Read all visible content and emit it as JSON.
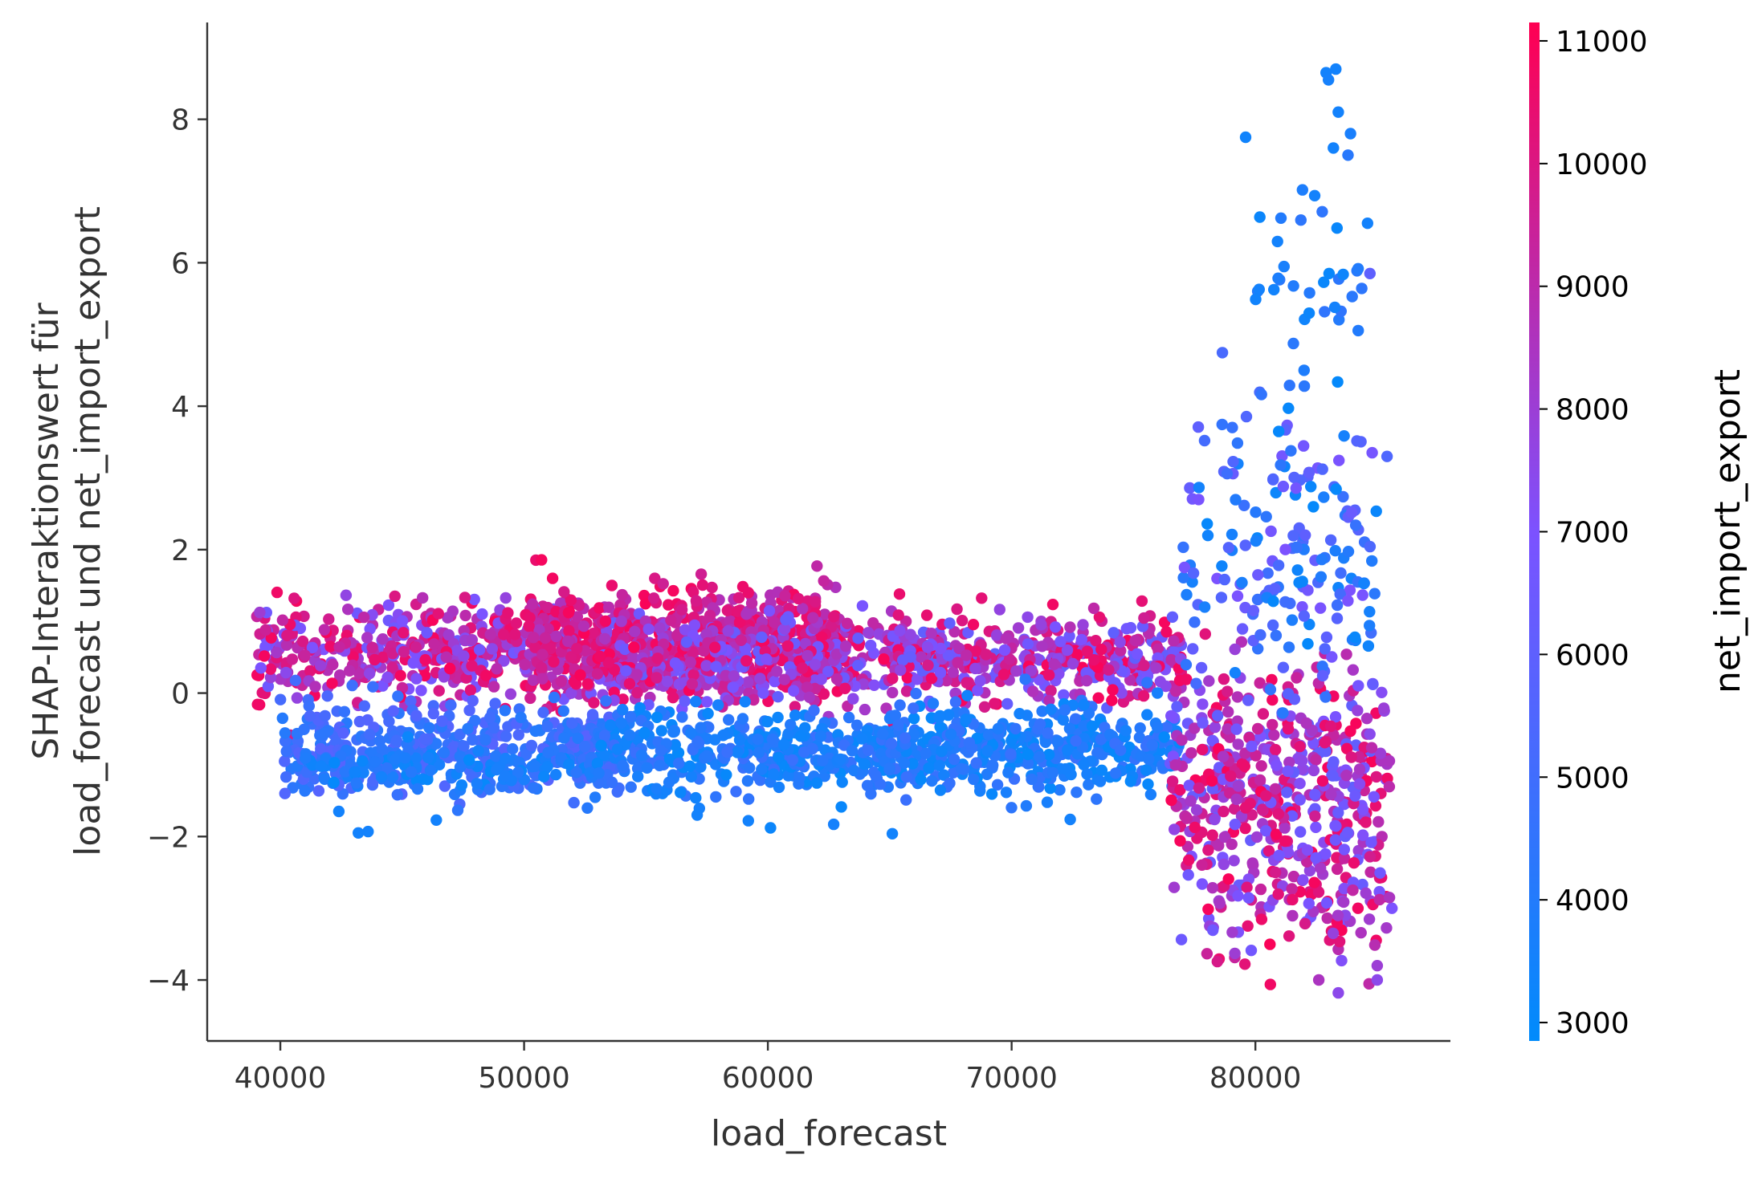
{
  "chart_data": {
    "type": "scatter",
    "xlabel": "load_forecast",
    "ylabel_lines": [
      "SHAP-Interaktionswert für",
      "load_forecast und net_import_export"
    ],
    "xlim": [
      37000,
      88000
    ],
    "ylim": [
      -4.85,
      9.35
    ],
    "x_ticks": [
      40000,
      50000,
      60000,
      70000,
      80000
    ],
    "x_tick_labels": [
      "40000",
      "50000",
      "60000",
      "70000",
      "80000"
    ],
    "y_ticks": [
      -4,
      -2,
      0,
      2,
      4,
      6,
      8
    ],
    "y_tick_labels": [
      "−4",
      "−2",
      "0",
      "2",
      "4",
      "6",
      "8"
    ],
    "grid": false,
    "colorbar": {
      "label": "net_import_export",
      "range": [
        2850,
        11150
      ],
      "ticks": [
        3000,
        4000,
        5000,
        6000,
        7000,
        8000,
        9000,
        10000,
        11000
      ],
      "tick_labels": [
        "3000",
        "4000",
        "5000",
        "6000",
        "7000",
        "8000",
        "9000",
        "10000",
        "11000"
      ],
      "colors": [
        "#008bfb",
        "#7c52ff",
        "#ff0052"
      ]
    },
    "clusters": [
      {
        "x_range": [
          39000,
          54000
        ],
        "y_center": 0.6,
        "y_spread": 0.35,
        "color_range": [
          6500,
          11000
        ],
        "count": 500
      },
      {
        "x_range": [
          50000,
          63000
        ],
        "y_center": 0.75,
        "y_spread": 0.35,
        "color_range": [
          8500,
          11000
        ],
        "count": 550
      },
      {
        "x_range": [
          53000,
          77000
        ],
        "y_center": 0.45,
        "y_spread": 0.3,
        "color_range": [
          6000,
          11000
        ],
        "count": 900
      },
      {
        "x_range": [
          40000,
          54000
        ],
        "y_center": -0.75,
        "y_spread": 0.3,
        "color_range": [
          4000,
          5800
        ],
        "count": 450
      },
      {
        "x_range": [
          41000,
          53000
        ],
        "y_center": -1.05,
        "y_spread": 0.15,
        "color_range": [
          3000,
          4500
        ],
        "count": 120
      },
      {
        "x_range": [
          53000,
          77000
        ],
        "y_center": -0.8,
        "y_spread": 0.3,
        "color_range": [
          3000,
          4800
        ],
        "count": 800
      },
      {
        "x_range": [
          76500,
          85500
        ],
        "y_center": -1.2,
        "y_spread": 0.8,
        "color_range": [
          6000,
          11000
        ],
        "count": 450
      },
      {
        "x_range": [
          78000,
          85500
        ],
        "y_center": -2.9,
        "y_spread": 0.5,
        "color_range": [
          6500,
          11000
        ],
        "count": 120
      },
      {
        "x_range": [
          77000,
          85000
        ],
        "y_center": 2.0,
        "y_spread": 1.1,
        "color_range": [
          3000,
          7000
        ],
        "count": 180
      },
      {
        "x_range": [
          80000,
          84500
        ],
        "y_center": 5.5,
        "y_spread": 0.9,
        "color_range": [
          3000,
          4500
        ],
        "count": 40
      }
    ],
    "outliers": [
      {
        "x": 82900,
        "y": 8.65,
        "c": 3500
      },
      {
        "x": 83300,
        "y": 8.7,
        "c": 3500
      },
      {
        "x": 83000,
        "y": 8.55,
        "c": 3600
      },
      {
        "x": 83400,
        "y": 8.1,
        "c": 3500
      },
      {
        "x": 79600,
        "y": 7.75,
        "c": 3400
      },
      {
        "x": 83900,
        "y": 7.8,
        "c": 3700
      },
      {
        "x": 83200,
        "y": 7.6,
        "c": 3500
      },
      {
        "x": 83800,
        "y": 7.5,
        "c": 4200
      },
      {
        "x": 84600,
        "y": 6.55,
        "c": 3500
      },
      {
        "x": 84700,
        "y": 5.85,
        "c": 6000
      },
      {
        "x": 85400,
        "y": 3.3,
        "c": 5500
      },
      {
        "x": 43200,
        "y": -1.95,
        "c": 3500
      },
      {
        "x": 43600,
        "y": -1.93,
        "c": 3500
      },
      {
        "x": 42400,
        "y": -1.65,
        "c": 3500
      },
      {
        "x": 46400,
        "y": -1.77,
        "c": 3500
      },
      {
        "x": 62700,
        "y": -1.83,
        "c": 3600
      },
      {
        "x": 57100,
        "y": -1.7,
        "c": 3500
      },
      {
        "x": 59200,
        "y": -1.78,
        "c": 3500
      },
      {
        "x": 83400,
        "y": -4.18,
        "c": 7500
      },
      {
        "x": 82600,
        "y": -4.0,
        "c": 8500
      },
      {
        "x": 85000,
        "y": -4.0,
        "c": 7500
      },
      {
        "x": 85000,
        "y": -3.8,
        "c": 8000
      },
      {
        "x": 85600,
        "y": -3.0,
        "c": 7000
      },
      {
        "x": 85500,
        "y": -2.85,
        "c": 8500
      },
      {
        "x": 39200,
        "y": 0.35,
        "c": 7000
      },
      {
        "x": 39400,
        "y": 0.88,
        "c": 9500
      },
      {
        "x": 44700,
        "y": 1.35,
        "c": 10000
      },
      {
        "x": 53600,
        "y": 1.5,
        "c": 10500
      },
      {
        "x": 59200,
        "y": 1.4,
        "c": 10500
      },
      {
        "x": 65400,
        "y": 1.38,
        "c": 10500
      }
    ]
  }
}
